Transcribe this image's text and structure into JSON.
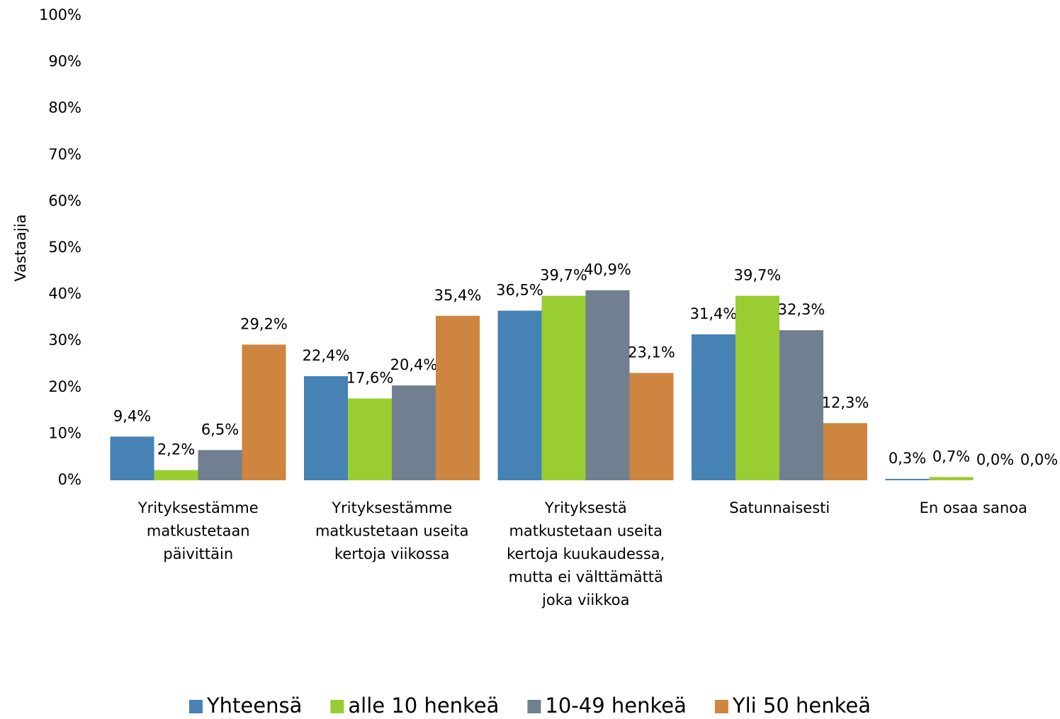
{
  "chart_data": {
    "type": "bar",
    "y_axis_label": "Vastaajia",
    "categories": [
      "Yrityksestämme matkustetaan päivittäin",
      "Yrityksestämme matkustetaan useita kertoja viikossa",
      "Yrityksestä matkustetaan useita kertoja kuukaudessa, mutta ei välttämättä joka viikkoa",
      "Satunnaisesti",
      "En osaa sanoa"
    ],
    "series": [
      {
        "name": "Yhteensä",
        "color": "#4682b4",
        "values": [
          9.4,
          22.4,
          36.5,
          31.4,
          0.3
        ],
        "value_labels": [
          "9,4%",
          "22,4%",
          "36,5%",
          "31,4%",
          "0,3%"
        ]
      },
      {
        "name": "alle 10 henkeä",
        "color": "#9acd32",
        "values": [
          2.2,
          17.6,
          39.7,
          39.7,
          0.7
        ],
        "value_labels": [
          "2,2%",
          "17,6%",
          "39,7%",
          "39,7%",
          "0,7%"
        ]
      },
      {
        "name": "10-49 henkeä",
        "color": "#708090",
        "values": [
          6.5,
          20.4,
          40.9,
          32.3,
          0.0
        ],
        "value_labels": [
          "6,5%",
          "20,4%",
          "40,9%",
          "32,3%",
          "0,0%"
        ]
      },
      {
        "name": "Yli 50 henkeä",
        "color": "#cd853f",
        "values": [
          29.2,
          35.4,
          23.1,
          12.3,
          0.0
        ],
        "value_labels": [
          "29,2%",
          "35,4%",
          "23,1%",
          "12,3%",
          "0,0%"
        ]
      }
    ],
    "ylim": [
      0,
      100
    ],
    "yticks": [
      {
        "value": 0,
        "label": "0%"
      },
      {
        "value": 10,
        "label": "10%"
      },
      {
        "value": 20,
        "label": "20%"
      },
      {
        "value": 30,
        "label": "30%"
      },
      {
        "value": 40,
        "label": "40%"
      },
      {
        "value": 50,
        "label": "50%"
      },
      {
        "value": 60,
        "label": "60%"
      },
      {
        "value": 70,
        "label": "70%"
      },
      {
        "value": 80,
        "label": "80%"
      },
      {
        "value": 90,
        "label": "90%"
      },
      {
        "value": 100,
        "label": "100%"
      }
    ],
    "grid": false,
    "legend": "bottom"
  }
}
